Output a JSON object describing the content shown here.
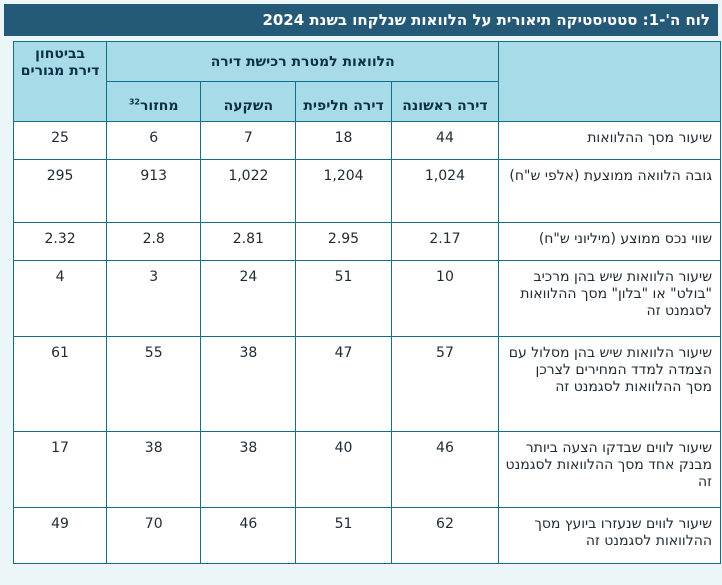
{
  "title": "לוח ה'-1: סטטיסטיקה תיאורית על הלוואות שנלקחו בשנת 2024",
  "header": {
    "group": "הלוואות למטרת רכישת דירה",
    "first_home": "דירה ראשונה",
    "replacement_home": "דירה חליפית",
    "investment": "השקעה",
    "refinance": "מחזור",
    "refinance_note": "32",
    "secure_housing": "בביטחון דירת מגורים"
  },
  "rows": [
    {
      "label": "שיעור מסך ההלוואות",
      "values": [
        "44",
        "18",
        "7",
        "6",
        "25"
      ]
    },
    {
      "label": "גובה הלוואה ממוצעת (אלפי ש\"ח)",
      "values": [
        "1,024",
        "1,204",
        "1,022",
        "913",
        "295"
      ]
    },
    {
      "label": "שווי נכס ממוצע (מיליוני ש\"ח)",
      "values": [
        "2.17",
        "2.95",
        "2.81",
        "2.8",
        "2.32"
      ]
    },
    {
      "label": "שיעור הלוואות שיש בהן מרכיב \"בולט\" או \"בלון\" מסך ההלוואות לסגמנט זה",
      "values": [
        "10",
        "51",
        "24",
        "3",
        "4"
      ]
    },
    {
      "label": "שיעור הלוואות שיש בהן מסלול עם הצמדה למדד המחירים לצרכן מסך ההלוואות לסגמנט זה",
      "values": [
        "57",
        "47",
        "38",
        "55",
        "61"
      ]
    },
    {
      "label": "שיעור לווים שבדקו הצעה ביותר מבנק אחד מסך ההלוואות לסגמנט זה",
      "values": [
        "46",
        "40",
        "38",
        "38",
        "17"
      ]
    },
    {
      "label": "שיעור לווים שנעזרו ביועץ מסך ההלוואות לסגמנט זה",
      "values": [
        "62",
        "51",
        "46",
        "70",
        "49"
      ]
    }
  ]
}
